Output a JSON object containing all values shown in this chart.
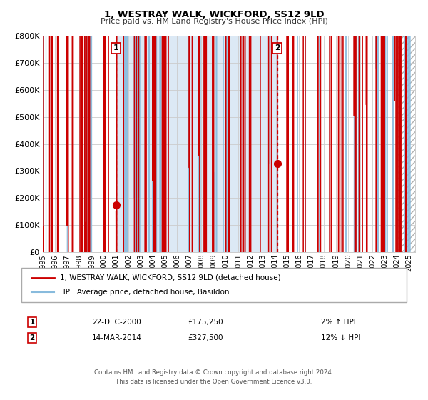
{
  "title": "1, WESTRAY WALK, WICKFORD, SS12 9LD",
  "subtitle": "Price paid vs. HM Land Registry's House Price Index (HPI)",
  "ylim": [
    0,
    800000
  ],
  "xlim_start": 1995.0,
  "xlim_end": 2025.5,
  "yticks": [
    0,
    100000,
    200000,
    300000,
    400000,
    500000,
    600000,
    700000,
    800000
  ],
  "ytick_labels": [
    "£0",
    "£100K",
    "£200K",
    "£300K",
    "£400K",
    "£500K",
    "£600K",
    "£700K",
    "£800K"
  ],
  "marker1_x": 2001.0,
  "marker1_y": 175250,
  "marker1_label": "1",
  "marker1_date": "22-DEC-2000",
  "marker1_price": "£175,250",
  "marker1_hpi": "2% ↑ HPI",
  "marker2_x": 2014.2,
  "marker2_y": 327500,
  "marker2_label": "2",
  "marker2_date": "14-MAR-2014",
  "marker2_price": "£327,500",
  "marker2_hpi": "12% ↓ HPI",
  "shaded_region_start": 2001.0,
  "shaded_region_end": 2014.2,
  "shaded_color": "#dce9f5",
  "hatch_region_start": 2024.0,
  "hatch_region_end": 2025.5,
  "red_line_color": "#cc0000",
  "blue_line_color": "#88bbdd",
  "vline1_color": "#cc0000",
  "vline2_color": "#cc0000",
  "vline3_color": "#999999",
  "grid_color": "#cccccc",
  "bg_color": "#ffffff",
  "legend_line1": "1, WESTRAY WALK, WICKFORD, SS12 9LD (detached house)",
  "legend_line2": "HPI: Average price, detached house, Basildon",
  "footer1": "Contains HM Land Registry data © Crown copyright and database right 2024.",
  "footer2": "This data is licensed under the Open Government Licence v3.0."
}
